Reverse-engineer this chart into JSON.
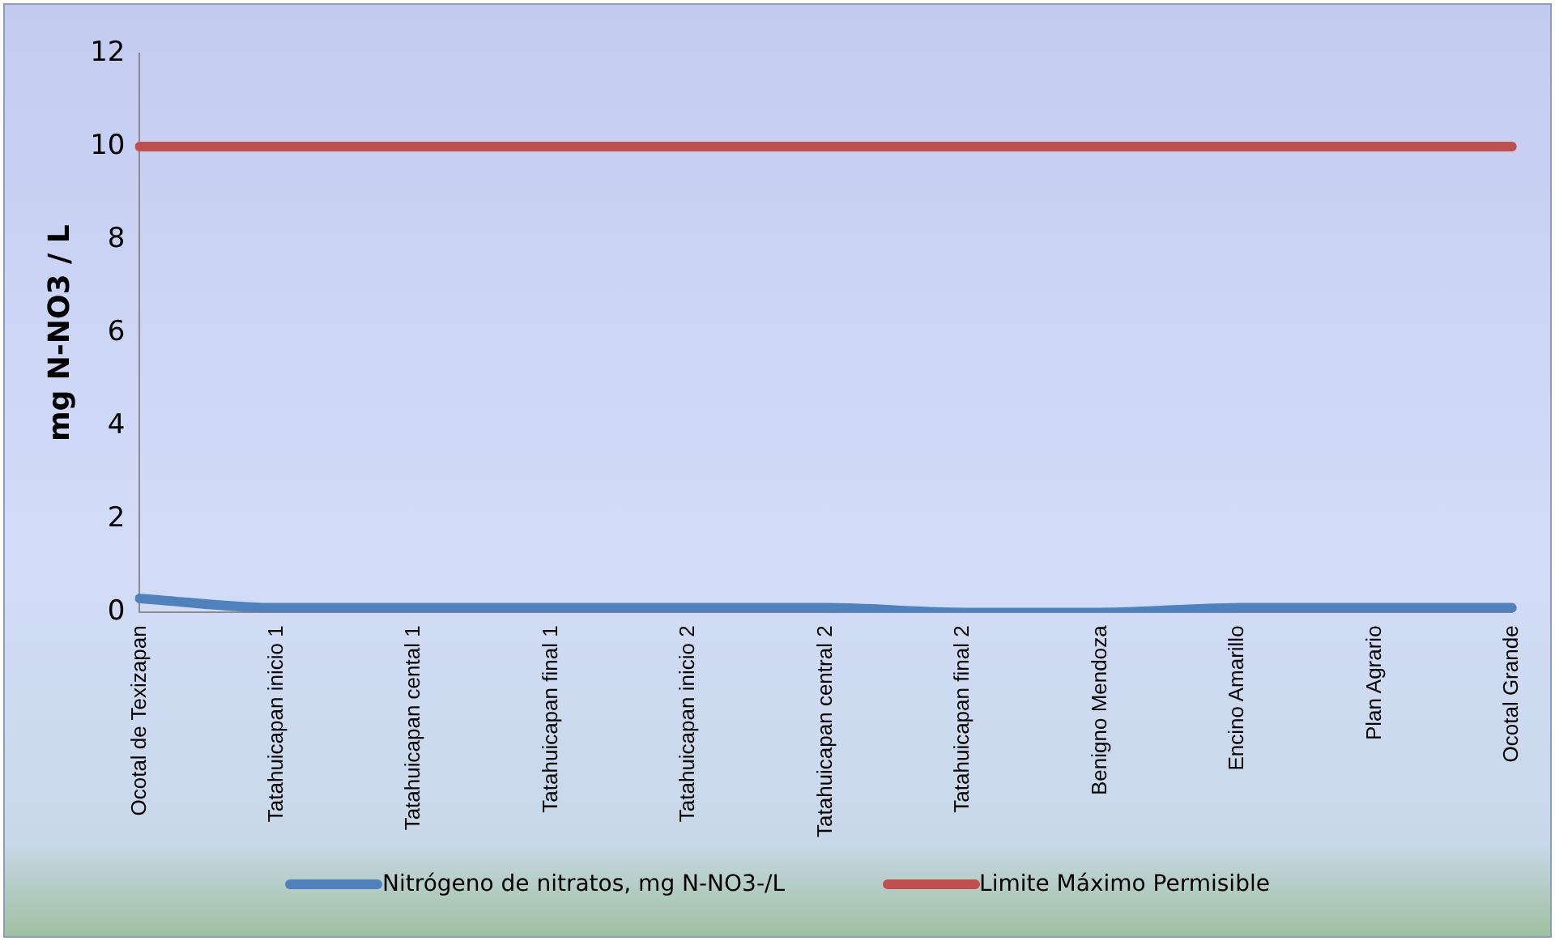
{
  "chart_data": {
    "type": "line",
    "ylabel": "mg N-NO3 / L",
    "categories": [
      "Ocotal de Texizapan",
      "Tatahuicapan inicio 1",
      "Tatahuicapan cental 1",
      "Tatahuicapan final 1",
      "Tatahuicapan inicio 2",
      "Tatahuicapan central 2",
      "Tatahuicapan final 2",
      "Benigno Mendoza",
      "Encino Amarillo",
      "Plan Agrario",
      "Ocotal Grande"
    ],
    "series": [
      {
        "name": "Nitrógeno de nitratos, mg N-NO3-/L",
        "color": "#4f81bd",
        "values": [
          0.3,
          0.1,
          0.1,
          0.1,
          0.1,
          0.1,
          0,
          0,
          0.1,
          0.1,
          0.1
        ]
      },
      {
        "name": "Limite Máximo Permisible",
        "color": "#c0504d",
        "values": [
          10,
          10,
          10,
          10,
          10,
          10,
          10,
          10,
          10,
          10,
          10
        ]
      }
    ],
    "ylim": [
      0,
      12
    ],
    "yticks": [
      0,
      2,
      4,
      6,
      8,
      10,
      12
    ],
    "grid": false,
    "legend": "bottom",
    "marker": "none",
    "line_style": "solid"
  }
}
